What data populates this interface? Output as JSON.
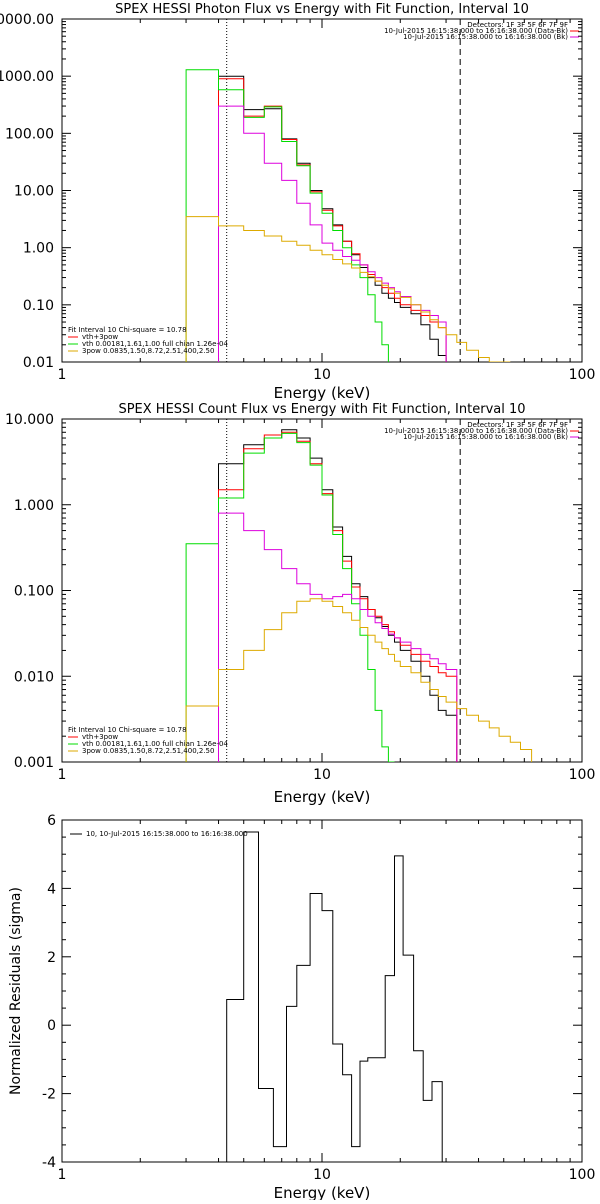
{
  "chart_data": [
    {
      "type": "line",
      "title": "SPEX HESSI Photon Flux vs Energy with Fit Function, Interval 10",
      "xlabel": "Energy (keV)",
      "ylabel": "",
      "xscale": "log",
      "yscale": "log",
      "xlim": [
        1,
        100
      ],
      "ylim": [
        0.01,
        10000
      ],
      "xticks": [
        "1",
        "10",
        "100"
      ],
      "yticks": [
        "10000.00",
        "1000.00",
        "100.00",
        "10.00",
        "1.00",
        "0.10",
        "0.01"
      ],
      "header_lines": [
        "Detectors: 1F 3F 5F 6F 7F 9F",
        "10-Jul-2015 16:15:38.000 to 16:16:38.000 (Data-Bk)",
        "10-Jul-2015 16:15:38.000 to 16:16:38.000 (Bk)"
      ],
      "legend_lines": [
        "Fit Interval 10   Chi-square = 10.78",
        "vth+3pow",
        "vth 0.00181,1.61,1.00  full chian 1.26e-04",
        "3pow 0.0835,1.50,8.72,2.51,400,2.50"
      ],
      "legend_placement": "bottom-left",
      "vlines": [
        {
          "x": 4.3,
          "style": "dotted"
        },
        {
          "x": 34,
          "style": "dashed"
        }
      ],
      "edges": [
        3,
        4,
        5,
        6,
        7,
        8,
        9,
        10,
        11,
        12,
        13,
        14,
        15,
        16,
        17,
        18,
        19,
        20,
        22,
        24,
        26,
        28,
        30,
        33,
        36,
        40,
        44,
        48,
        53
      ],
      "series": [
        {
          "color": "#000000",
          "y_at_edge": [
            null,
            1000,
            260,
            270,
            80,
            30,
            10,
            4.8,
            2.5,
            1.3,
            0.75,
            0.45,
            0.3,
            0.22,
            0.16,
            0.13,
            0.11,
            0.09,
            0.07,
            0.045,
            0.025,
            0.013,
            null,
            null,
            null,
            null,
            null,
            null,
            null
          ]
        },
        {
          "color": "#ff0000",
          "y_at_edge": [
            null,
            900,
            200,
            300,
            78,
            28,
            9.5,
            4.5,
            2.4,
            1.3,
            0.78,
            0.5,
            0.34,
            0.26,
            0.2,
            0.16,
            0.13,
            0.1,
            0.08,
            0.065,
            0.05,
            0.04,
            null,
            null,
            null,
            null,
            null,
            null,
            null
          ]
        },
        {
          "color": "#00dd00",
          "y_at_edge": [
            1300,
            580,
            190,
            290,
            72,
            27,
            9,
            4,
            2.0,
            1.0,
            0.5,
            0.3,
            0.15,
            0.05,
            0.02,
            null,
            null,
            null,
            null,
            null,
            null,
            null,
            null,
            null,
            null,
            null,
            null,
            null,
            null
          ]
        },
        {
          "color": "#dd00dd",
          "y_at_edge": [
            null,
            300,
            100,
            30,
            15,
            6,
            2.5,
            1.2,
            0.9,
            0.7,
            0.6,
            0.5,
            0.38,
            0.3,
            0.24,
            0.2,
            0.17,
            0.14,
            0.1,
            0.08,
            0.065,
            0.05,
            null,
            null,
            null,
            null,
            null,
            null,
            null
          ]
        },
        {
          "color": "#ddaa00",
          "y_at_edge": [
            3.5,
            2.4,
            2.0,
            1.6,
            1.3,
            1.1,
            0.9,
            0.75,
            0.62,
            0.52,
            0.44,
            0.37,
            0.31,
            0.26,
            0.22,
            0.19,
            0.16,
            0.135,
            0.1,
            0.075,
            0.055,
            0.04,
            0.03,
            0.022,
            0.016,
            0.012,
            0.01,
            0.008,
            null
          ]
        }
      ]
    },
    {
      "type": "line",
      "title": "SPEX HESSI Count Flux vs Energy with Fit Function, Interval 10",
      "xlabel": "Energy (keV)",
      "ylabel": "",
      "xscale": "log",
      "yscale": "log",
      "xlim": [
        1,
        100
      ],
      "ylim": [
        0.001,
        10
      ],
      "xticks": [
        "1",
        "10",
        "100"
      ],
      "yticks": [
        "10.000",
        "1.000",
        "0.100",
        "0.010",
        "0.001"
      ],
      "header_lines": [
        "Detectors: 1F 3F 5F 6F 7F 9F",
        "10-Jul-2015 16:15:38.000 to 16:16:38.000 (Data-Bk)",
        "10-Jul-2015 16:15:38.000 to 16:16:38.000 (Bk)"
      ],
      "legend_lines": [
        "Fit Interval 10   Chi-square = 10.78",
        "vth+3pow",
        "vth 0.00181,1.61,1.00  full chian 1.26e-04",
        "3pow 0.0835,1.50,8.72,2.51,400,2.50"
      ],
      "legend_placement": "bottom-left",
      "vlines": [
        {
          "x": 4.3,
          "style": "dotted"
        },
        {
          "x": 34,
          "style": "dashed"
        }
      ],
      "edges": [
        3,
        4,
        5,
        6,
        7,
        8,
        9,
        10,
        11,
        12,
        13,
        14,
        15,
        16,
        17,
        18,
        19,
        20,
        22,
        24,
        26,
        28,
        30,
        33,
        36,
        40,
        44,
        48,
        53,
        58,
        64
      ],
      "series": [
        {
          "color": "#000000",
          "y_at_edge": [
            null,
            3,
            5,
            6,
            7.5,
            6,
            3.5,
            1.5,
            0.55,
            0.25,
            0.12,
            0.085,
            0.06,
            0.048,
            0.038,
            0.03,
            0.025,
            0.02,
            0.015,
            0.01,
            0.006,
            0.004,
            0.0035,
            null,
            null,
            null,
            null,
            null,
            null,
            null,
            null
          ]
        },
        {
          "color": "#ff0000",
          "y_at_edge": [
            null,
            1.5,
            4.5,
            6.5,
            7,
            5.5,
            3.0,
            1.35,
            0.5,
            0.22,
            0.11,
            0.08,
            0.06,
            0.05,
            0.04,
            0.033,
            0.028,
            0.023,
            0.018,
            0.015,
            0.013,
            0.011,
            0.01,
            null,
            null,
            null,
            null,
            null,
            null,
            null,
            null
          ]
        },
        {
          "color": "#00dd00",
          "y_at_edge": [
            0.35,
            1.2,
            4.0,
            6.0,
            6.8,
            5.3,
            2.9,
            1.3,
            0.45,
            0.18,
            0.07,
            0.03,
            0.012,
            0.004,
            0.0015,
            0.001,
            null,
            null,
            null,
            null,
            null,
            null,
            null,
            null,
            null,
            null,
            null,
            null,
            null,
            null,
            null
          ]
        },
        {
          "color": "#dd00dd",
          "y_at_edge": [
            null,
            0.8,
            0.5,
            0.3,
            0.18,
            0.12,
            0.09,
            0.08,
            0.085,
            0.09,
            0.08,
            0.06,
            0.05,
            0.042,
            0.036,
            0.031,
            0.028,
            0.025,
            0.021,
            0.018,
            0.016,
            0.014,
            0.012,
            null,
            null,
            null,
            null,
            null,
            null,
            null,
            null
          ]
        },
        {
          "color": "#ddaa00",
          "y_at_edge": [
            0.0045,
            0.012,
            0.02,
            0.035,
            0.055,
            0.075,
            0.08,
            0.075,
            0.065,
            0.055,
            0.045,
            0.037,
            0.03,
            0.025,
            0.021,
            0.018,
            0.015,
            0.013,
            0.011,
            0.0085,
            0.007,
            0.0058,
            0.005,
            0.0042,
            0.0035,
            0.003,
            0.0025,
            0.002,
            0.0017,
            0.0014,
            null
          ]
        }
      ]
    },
    {
      "type": "line",
      "title": "",
      "xlabel": "Energy (keV)",
      "ylabel": "Normalized Residuals (sigma)",
      "xscale": "log",
      "yscale": "linear",
      "xlim": [
        1,
        100
      ],
      "ylim": [
        -4,
        6
      ],
      "xticks": [
        "1",
        "10",
        "100"
      ],
      "yticks": [
        "6",
        "4",
        "2",
        "0",
        "-2",
        "-4"
      ],
      "legend_lines": [
        "10, 10-Jul-2015 16:15:38.000 to 16:16:38.000"
      ],
      "legend_placement": "top-left",
      "edges": [
        4.3,
        5,
        5.7,
        6.5,
        7.3,
        8,
        9,
        10,
        11,
        12,
        13,
        14,
        15,
        16,
        17.5,
        19,
        20.5,
        22.5,
        24.5,
        26.5,
        29,
        31.5,
        34
      ],
      "series": [
        {
          "color": "#000000",
          "values": [
            0.75,
            5.65,
            -1.85,
            -3.55,
            0.55,
            1.75,
            3.85,
            3.35,
            -0.55,
            -1.45,
            -3.55,
            -1.05,
            -0.95,
            -0.95,
            1.45,
            4.95,
            2.05,
            -0.75,
            -2.2,
            -1.65,
            -4.0,
            -4.0
          ]
        }
      ]
    }
  ]
}
